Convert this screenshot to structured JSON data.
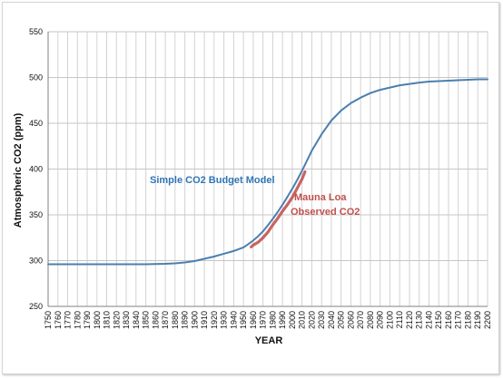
{
  "chart_data": {
    "type": "line",
    "title": "",
    "xlabel": "YEAR",
    "ylabel": "Atmospheric CO2 (ppm)",
    "xlim": [
      1750,
      2200
    ],
    "ylim": [
      250,
      550
    ],
    "x_ticks": [
      1750,
      1760,
      1770,
      1780,
      1790,
      1800,
      1810,
      1820,
      1830,
      1840,
      1850,
      1860,
      1870,
      1880,
      1890,
      1900,
      1910,
      1920,
      1930,
      1940,
      1950,
      1960,
      1970,
      1980,
      1990,
      2000,
      2010,
      2020,
      2030,
      2040,
      2050,
      2060,
      2070,
      2080,
      2090,
      2100,
      2110,
      2120,
      2130,
      2140,
      2150,
      2160,
      2170,
      2180,
      2190,
      2200
    ],
    "y_ticks": [
      250,
      300,
      350,
      400,
      450,
      500,
      550
    ],
    "grid": true,
    "legend": "none",
    "series": [
      {
        "name": "Simple CO2 Budget Model",
        "color": "#4a7fb0",
        "x": [
          1750,
          1800,
          1850,
          1870,
          1880,
          1890,
          1900,
          1910,
          1920,
          1930,
          1940,
          1950,
          1955,
          1960,
          1965,
          1970,
          1975,
          1980,
          1985,
          1990,
          1995,
          2000,
          2005,
          2010,
          2015,
          2020,
          2030,
          2040,
          2050,
          2060,
          2070,
          2080,
          2090,
          2100,
          2110,
          2120,
          2130,
          2140,
          2150,
          2160,
          2170,
          2180,
          2190,
          2200
        ],
        "y": [
          296,
          296,
          296,
          296.5,
          297,
          298,
          299.5,
          302,
          304.5,
          307.5,
          310.5,
          314.5,
          318,
          322,
          326.5,
          332,
          338.5,
          345.5,
          353,
          361,
          369.5,
          378.5,
          388,
          398,
          409,
          420,
          438,
          453,
          464,
          472,
          478,
          483,
          486.5,
          489,
          491.5,
          493,
          494.5,
          495.5,
          496,
          496.5,
          497,
          497.5,
          498,
          498
        ]
      },
      {
        "name": "Mauna Loa Observed CO2",
        "color": "#c0504d",
        "x": [
          1958,
          1960,
          1965,
          1970,
          1975,
          1980,
          1985,
          1990,
          1995,
          2000,
          2005,
          2010,
          2013
        ],
        "y": [
          315,
          317,
          320,
          325,
          331,
          339,
          346,
          354,
          361,
          369,
          379,
          389,
          397
        ]
      }
    ],
    "annotations": [
      {
        "text": "Simple CO2 Budget Model",
        "color": "#2e75b6"
      },
      {
        "text": "Mauna Loa",
        "color": "#c0504d"
      },
      {
        "text": "Observed CO2",
        "color": "#c0504d"
      }
    ]
  }
}
